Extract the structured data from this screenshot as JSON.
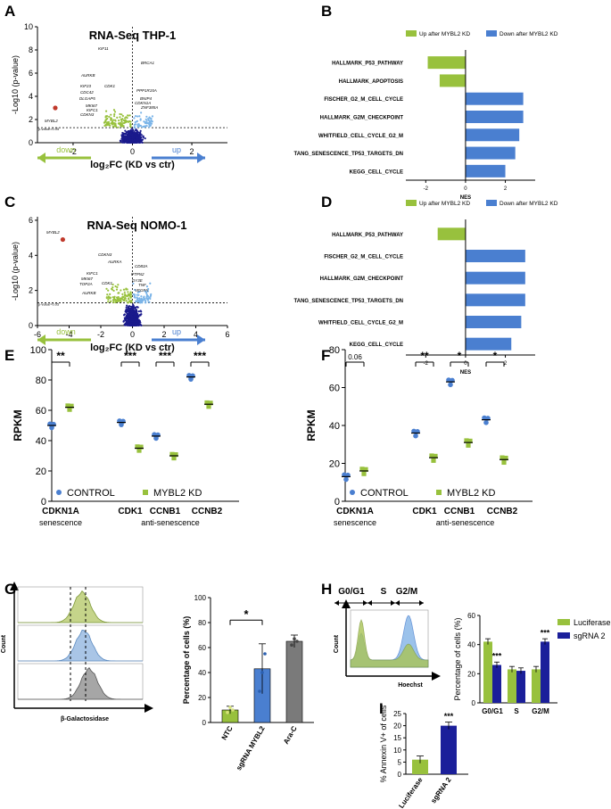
{
  "colors": {
    "green": "#98c13d",
    "blue": "#4a7fd0",
    "lightblue": "#7ab4e8",
    "navy": "#1b1f9a",
    "gray": "#7a7a7a",
    "darkblue": "#1a1a8c",
    "red": "#c0392b"
  },
  "panels": {
    "A": {
      "letter": "A",
      "title": "RNA-Seq THP-1",
      "ylabel": "-Log10 (p-value)",
      "xlabel": "log₂FC (KD vs ctr)",
      "pval_label": "p-value=0.05",
      "down": "down",
      "up": "up",
      "yticks": [
        "0",
        "2",
        "4",
        "6",
        "8",
        "10"
      ],
      "xticks": [
        "-2",
        "0",
        "2"
      ],
      "genes": [
        "KIF11",
        "AURKB",
        "KIF23",
        "CDC42",
        "DLGAP5",
        "CDK1",
        "MKI67",
        "KIFC1",
        "CDKN3",
        "MYBL2",
        "BRCA1",
        "PPP1R15A",
        "BNIP4",
        "CDKN1A",
        "ZNF385A"
      ]
    },
    "B": {
      "letter": "B",
      "legend_up": "Up after MYBL2 KD",
      "legend_down": "Down after MYBL2 KD",
      "xlabel": "NES",
      "xticks": [
        "-2",
        "0",
        "2"
      ],
      "chart_data": {
        "type": "bar",
        "orientation": "horizontal",
        "categories": [
          "HALLMARK_P53_PATHWAY",
          "HALLMARK_APOPTOSIS",
          "FISCHER_G2_M_CELL_CYCLE",
          "HALLMARK_G2M_CHECKPOINT",
          "WHITFIELD_CELL_CYCLE_G2_M",
          "TANG_SENESCENCE_TP53_TARGETS_DN",
          "KEGG_CELL_CYCLE"
        ],
        "values": [
          -1.9,
          -1.3,
          2.9,
          2.9,
          2.7,
          2.5,
          2.0
        ],
        "xlim": [
          -3,
          3.5
        ],
        "xlabel": "NES"
      }
    },
    "C": {
      "letter": "C",
      "title": "RNA-Seq NOMO-1",
      "ylabel": "-Log10 (p-value)",
      "xlabel": "log₂FC (KD vs ctr)",
      "pval_label": "p-value=0.05",
      "down": "down",
      "up": "up",
      "yticks": [
        "0",
        "2",
        "4",
        "6"
      ],
      "xticks": [
        "-6",
        "-4",
        "-2",
        "0",
        "2",
        "4",
        "6"
      ],
      "genes": [
        "MYBL2",
        "CDKN3",
        "AURKA",
        "KIFC1",
        "MKI67",
        "TOP2A",
        "CDK1",
        "AURKB",
        "CD83A",
        "PTPN2",
        "DY3E",
        "TNF",
        "VEGFA"
      ]
    },
    "D": {
      "letter": "D",
      "legend_up": "Up after MYBL2 KD",
      "legend_down": "Down after MYBL2 KD",
      "xlabel": "NES",
      "xticks": [
        "-2",
        "0",
        "2"
      ],
      "chart_data": {
        "type": "bar",
        "orientation": "horizontal",
        "categories": [
          "HALLMARK_P53_PATHWAY",
          "FISCHER_G2_M_CELL_CYCLE",
          "HALLMARK_G2M_CHECKPOINT",
          "TANG_SENESCENCE_TP53_TARGETS_DN",
          "WHITFIELD_CELL_CYCLE_G2_M",
          "KEGG_CELL_CYCLE"
        ],
        "values": [
          -1.4,
          3.0,
          3.0,
          3.0,
          2.8,
          2.3
        ],
        "xlim": [
          -3,
          3.5
        ],
        "xlabel": "NES"
      }
    },
    "E": {
      "letter": "E",
      "ylabel": "RPKM",
      "yticks": [
        "0",
        "20",
        "40",
        "60",
        "80",
        "100"
      ],
      "legend_control": "CONTROL",
      "legend_kd": "MYBL2 KD",
      "group1": "senescence",
      "group2": "anti-senescence",
      "chart_data": {
        "type": "scatter",
        "ylim": [
          0,
          100
        ],
        "categories": [
          "CDKN1A",
          "CDK1",
          "CCNB1",
          "CCNB2"
        ],
        "series": [
          {
            "name": "CONTROL",
            "values": [
              50,
              52,
              43,
              82
            ]
          },
          {
            "name": "MYBL2 KD",
            "values": [
              62,
              35,
              30,
              64
            ]
          }
        ],
        "significance": [
          "**",
          "***",
          "***",
          "***"
        ]
      }
    },
    "F": {
      "letter": "F",
      "ylabel": "RPKM",
      "yticks": [
        "0",
        "20",
        "40",
        "60",
        "80"
      ],
      "legend_control": "CONTROL",
      "legend_kd": "MYBL2 KD",
      "group1": "senescence",
      "group2": "anti-senescence",
      "chart_data": {
        "type": "scatter",
        "ylim": [
          0,
          80
        ],
        "categories": [
          "CDKN1A",
          "CDK1",
          "CCNB1",
          "CCNB2"
        ],
        "series": [
          {
            "name": "CONTROL",
            "values": [
              13,
              36,
              63,
              43
            ]
          },
          {
            "name": "MYBL2 KD",
            "values": [
              16,
              23,
              31,
              22
            ]
          }
        ],
        "significance": [
          "0.06",
          "**",
          "*",
          "*"
        ]
      }
    },
    "G": {
      "letter": "G",
      "hist_ylabel": "Count",
      "hist_xlabel": "β-Galactosidase",
      "ylabel": "Percentage of cells (%)",
      "yticks": [
        "0",
        "20",
        "40",
        "60",
        "80",
        "100"
      ],
      "sig": "*",
      "chart_data": {
        "type": "bar",
        "categories": [
          "NTC",
          "sgRNA MYBL2",
          "Ara-C"
        ],
        "values": [
          10,
          43,
          65
        ],
        "ylim": [
          0,
          100
        ]
      }
    },
    "H": {
      "letter": "H",
      "phases": [
        "G0/G1",
        "S",
        "G2/M"
      ],
      "hist_ylabel": "Count",
      "hist_xlabel": "Hoechst",
      "ylabel": "Percentage of cells (%)",
      "yticks": [
        "0",
        "20",
        "40",
        "60"
      ],
      "chart_data": {
        "type": "bar",
        "categories": [
          "G0/G1",
          "S",
          "G2/M"
        ],
        "series": [
          {
            "name": "Luciferase",
            "values": [
              42,
              23,
              23
            ]
          },
          {
            "name": "sgRNA 2",
            "values": [
              26,
              22,
              42
            ]
          }
        ],
        "significance": [
          "***",
          "",
          "***"
        ],
        "ylim": [
          0,
          60
        ]
      }
    },
    "I": {
      "letter": "I",
      "ylabel": "% Annexin V+ of cells",
      "yticks": [
        "0",
        "5",
        "10",
        "15",
        "20",
        "25"
      ],
      "sig": "***",
      "chart_data": {
        "type": "bar",
        "categories": [
          "Luciferase",
          "sgRNA 2"
        ],
        "values": [
          6,
          20
        ],
        "ylim": [
          0,
          25
        ]
      }
    }
  }
}
